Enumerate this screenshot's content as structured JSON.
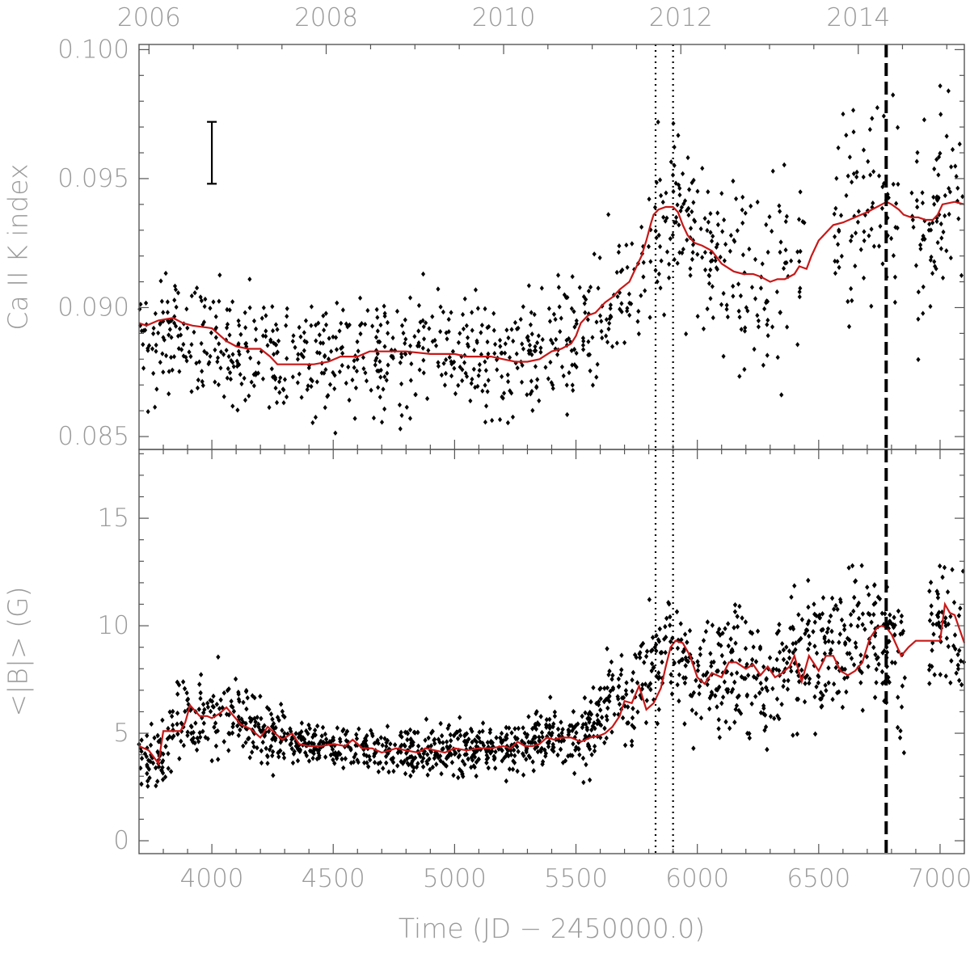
{
  "chart_data": [
    {
      "type": "scatter",
      "panel": "top",
      "ylabel": "Ca II K index",
      "xlim": [
        3700,
        7100
      ],
      "ylim": [
        0.0845,
        0.1002
      ],
      "yticks": [
        0.085,
        0.09,
        0.095,
        0.1
      ],
      "ytick_labels": [
        "0.085",
        "0.090",
        "0.095",
        "0.100"
      ],
      "top_axis_ticks": [
        3741,
        4471,
        5202,
        5932,
        6663
      ],
      "top_axis_labels": [
        "2006",
        "2008",
        "2010",
        "2012",
        "2014"
      ],
      "error_bar": {
        "x": 4000,
        "y": 0.096,
        "half_height": 0.0012
      },
      "vertical_lines": [
        {
          "x": 5828,
          "style": "dotted"
        },
        {
          "x": 5900,
          "style": "dotted"
        },
        {
          "x": 6778,
          "style": "dashed"
        }
      ],
      "series": [
        {
          "kind": "points",
          "color": "#000000",
          "trend": [
            [
              3700,
              0.0892
            ],
            [
              3800,
              0.0891
            ],
            [
              3900,
              0.0892
            ],
            [
              4000,
              0.0887
            ],
            [
              4100,
              0.0884
            ],
            [
              4250,
              0.0881
            ],
            [
              4400,
              0.0879
            ],
            [
              4550,
              0.0881
            ],
            [
              4700,
              0.0882
            ],
            [
              4850,
              0.0883
            ],
            [
              5000,
              0.0882
            ],
            [
              5150,
              0.0881
            ],
            [
              5300,
              0.088
            ],
            [
              5400,
              0.0883
            ],
            [
              5500,
              0.0889
            ],
            [
              5600,
              0.0896
            ],
            [
              5700,
              0.0906
            ],
            [
              5780,
              0.0918
            ],
            [
              5840,
              0.0933
            ],
            [
              5900,
              0.0937
            ],
            [
              5950,
              0.093
            ],
            [
              6000,
              0.0924
            ],
            [
              6100,
              0.0916
            ],
            [
              6200,
              0.0911
            ],
            [
              6300,
              0.091
            ],
            [
              6400,
              0.0916
            ],
            [
              6500,
              0.0928
            ],
            [
              6600,
              0.0935
            ],
            [
              6700,
              0.094
            ],
            [
              6800,
              0.094
            ],
            [
              6900,
              0.0936
            ],
            [
              7000,
              0.0938
            ],
            [
              7100,
              0.0937
            ]
          ],
          "sd": [
            [
              3700,
              0.0011
            ],
            [
              5400,
              0.0011
            ],
            [
              5600,
              0.0013
            ],
            [
              5900,
              0.0016
            ],
            [
              6200,
              0.0018
            ],
            [
              6500,
              0.002
            ],
            [
              7100,
              0.0019
            ]
          ],
          "gaps": [
            [
              6445,
              6560
            ],
            [
              6830,
              6880
            ]
          ],
          "n": 1100
        },
        {
          "kind": "line",
          "color": "#c81818",
          "x": [
            3700,
            3730,
            3780,
            3840,
            3880,
            3920,
            4000,
            4060,
            4100,
            4150,
            4200,
            4240,
            4270,
            4300,
            4350,
            4420,
            4480,
            4530,
            4600,
            4650,
            4700,
            4800,
            4900,
            5000,
            5050,
            5100,
            5150,
            5200,
            5250,
            5300,
            5350,
            5400,
            5440,
            5480,
            5500,
            5520,
            5550,
            5580,
            5620,
            5650,
            5680,
            5720,
            5750,
            5770,
            5790,
            5810,
            5820,
            5840,
            5870,
            5900,
            5920,
            5940,
            5960,
            5990,
            6020,
            6060,
            6100,
            6150,
            6190,
            6230,
            6260,
            6300,
            6330,
            6360,
            6400,
            6420,
            6450,
            6470,
            6500,
            6560,
            6600,
            6650,
            6700,
            6740,
            6760,
            6780,
            6800,
            6830,
            6850,
            6880,
            6910,
            6940,
            6970,
            6990,
            7010,
            7060,
            7100
          ],
          "y": [
            0.0894,
            0.0893,
            0.0895,
            0.0896,
            0.0894,
            0.0893,
            0.0892,
            0.0887,
            0.0885,
            0.0884,
            0.0884,
            0.0881,
            0.0878,
            0.0878,
            0.0878,
            0.0878,
            0.0879,
            0.0881,
            0.0881,
            0.0883,
            0.0883,
            0.0883,
            0.0882,
            0.0882,
            0.0881,
            0.0881,
            0.0881,
            0.088,
            0.0879,
            0.0879,
            0.088,
            0.0883,
            0.0884,
            0.0886,
            0.0889,
            0.0894,
            0.0897,
            0.0898,
            0.0902,
            0.0904,
            0.0907,
            0.091,
            0.0916,
            0.092,
            0.0926,
            0.0933,
            0.0936,
            0.0938,
            0.0939,
            0.0939,
            0.0937,
            0.0932,
            0.0928,
            0.0925,
            0.0924,
            0.0922,
            0.0917,
            0.0914,
            0.0913,
            0.0913,
            0.0912,
            0.091,
            0.0911,
            0.0911,
            0.0913,
            0.0916,
            0.0915,
            0.092,
            0.0926,
            0.0932,
            0.0933,
            0.0935,
            0.0937,
            0.0939,
            0.094,
            0.0941,
            0.094,
            0.0938,
            0.0936,
            0.0935,
            0.0935,
            0.0934,
            0.0934,
            0.0936,
            0.094,
            0.0941,
            0.094
          ]
        }
      ]
    },
    {
      "type": "scatter",
      "panel": "bottom",
      "xlabel": "Time (JD − 2450000.0)",
      "ylabel": "<|B|> (G)",
      "xlim": [
        3700,
        7100
      ],
      "ylim": [
        -0.6,
        18.2
      ],
      "xticks": [
        4000,
        4500,
        5000,
        5500,
        6000,
        6500,
        7000
      ],
      "xtick_labels": [
        "4000",
        "4500",
        "5000",
        "5500",
        "6000",
        "6500",
        "7000"
      ],
      "yticks": [
        0,
        5,
        10,
        15
      ],
      "ytick_labels": [
        "0",
        "5",
        "10",
        "15"
      ],
      "vertical_lines": [
        {
          "x": 5828,
          "style": "dotted"
        },
        {
          "x": 5900,
          "style": "dotted"
        },
        {
          "x": 6778,
          "style": "dashed"
        }
      ],
      "series": [
        {
          "kind": "points",
          "color": "#000000",
          "trend": [
            [
              3700,
              4.0
            ],
            [
              3780,
              3.8
            ],
            [
              3820,
              5.0
            ],
            [
              3880,
              6.0
            ],
            [
              4000,
              5.8
            ],
            [
              4100,
              5.9
            ],
            [
              4200,
              5.0
            ],
            [
              4300,
              4.9
            ],
            [
              4400,
              4.5
            ],
            [
              4600,
              4.3
            ],
            [
              4800,
              4.2
            ],
            [
              5000,
              4.2
            ],
            [
              5200,
              4.3
            ],
            [
              5300,
              4.5
            ],
            [
              5400,
              4.8
            ],
            [
              5550,
              5.0
            ],
            [
              5650,
              6.8
            ],
            [
              5720,
              6.2
            ],
            [
              5800,
              8.0
            ],
            [
              5880,
              9.3
            ],
            [
              5950,
              8.2
            ],
            [
              6050,
              7.4
            ],
            [
              6150,
              8.0
            ],
            [
              6300,
              7.6
            ],
            [
              6400,
              8.3
            ],
            [
              6500,
              8.1
            ],
            [
              6600,
              9.6
            ],
            [
              6700,
              10.0
            ],
            [
              6780,
              9.0
            ],
            [
              6820,
              8.3
            ],
            [
              6900,
              9.3
            ],
            [
              7000,
              11.0
            ],
            [
              7100,
              9.0
            ]
          ],
          "sd": [
            [
              3700,
              0.6
            ],
            [
              3850,
              1.0
            ],
            [
              4150,
              0.9
            ],
            [
              4400,
              0.5
            ],
            [
              5400,
              0.6
            ],
            [
              5600,
              1.0
            ],
            [
              5850,
              1.3
            ],
            [
              6300,
              1.5
            ],
            [
              6700,
              1.6
            ],
            [
              7100,
              1.7
            ]
          ],
          "gaps": [
            [
              6855,
              6955
            ]
          ],
          "n": 3400
        },
        {
          "kind": "line",
          "color": "#c81818",
          "x": [
            3700,
            3740,
            3760,
            3780,
            3800,
            3820,
            3850,
            3870,
            3890,
            3910,
            3950,
            3980,
            4000,
            4030,
            4060,
            4090,
            4120,
            4160,
            4200,
            4230,
            4260,
            4290,
            4330,
            4360,
            4400,
            4450,
            4500,
            4550,
            4580,
            4620,
            4660,
            4700,
            4760,
            4800,
            4850,
            4880,
            4920,
            4960,
            5000,
            5050,
            5100,
            5150,
            5200,
            5230,
            5260,
            5290,
            5320,
            5350,
            5380,
            5410,
            5440,
            5480,
            5520,
            5560,
            5600,
            5620,
            5650,
            5680,
            5700,
            5730,
            5760,
            5790,
            5820,
            5850,
            5870,
            5890,
            5910,
            5940,
            5970,
            6000,
            6030,
            6060,
            6100,
            6130,
            6160,
            6200,
            6230,
            6260,
            6290,
            6320,
            6350,
            6380,
            6400,
            6430,
            6460,
            6500,
            6530,
            6560,
            6590,
            6620,
            6650,
            6680,
            6710,
            6740,
            6760,
            6780,
            6800,
            6820,
            6840,
            6870,
            6900,
            6950,
            6980,
            7000,
            7020,
            7040,
            7060,
            7100
          ],
          "y": [
            4.4,
            4.2,
            3.9,
            3.6,
            5.1,
            5.1,
            5.1,
            5.1,
            5.5,
            6.3,
            5.8,
            5.8,
            5.7,
            5.9,
            6.2,
            5.8,
            5.4,
            5.2,
            4.8,
            5.3,
            5.0,
            4.7,
            5.0,
            4.5,
            4.4,
            4.4,
            4.5,
            4.4,
            4.7,
            4.3,
            4.3,
            4.1,
            4.3,
            4.2,
            4.1,
            4.3,
            4.2,
            4.1,
            4.3,
            4.2,
            4.3,
            4.3,
            4.4,
            4.3,
            4.6,
            4.4,
            4.4,
            4.5,
            4.8,
            4.7,
            4.8,
            4.8,
            4.6,
            4.8,
            4.9,
            5.0,
            5.3,
            5.8,
            6.5,
            6.4,
            7.2,
            6.1,
            6.4,
            7.1,
            8.1,
            9.0,
            9.3,
            9.2,
            8.6,
            7.6,
            7.3,
            7.8,
            7.6,
            8.3,
            8.3,
            8.0,
            8.2,
            7.7,
            8.1,
            7.6,
            7.8,
            8.1,
            8.6,
            7.4,
            8.6,
            7.9,
            8.6,
            8.6,
            7.9,
            7.7,
            7.9,
            8.3,
            9.4,
            9.9,
            10.0,
            9.9,
            9.6,
            9.1,
            8.6,
            9.0,
            9.3,
            9.3,
            9.3,
            9.3,
            11.0,
            10.6,
            10.5,
            9.2
          ]
        }
      ]
    }
  ]
}
